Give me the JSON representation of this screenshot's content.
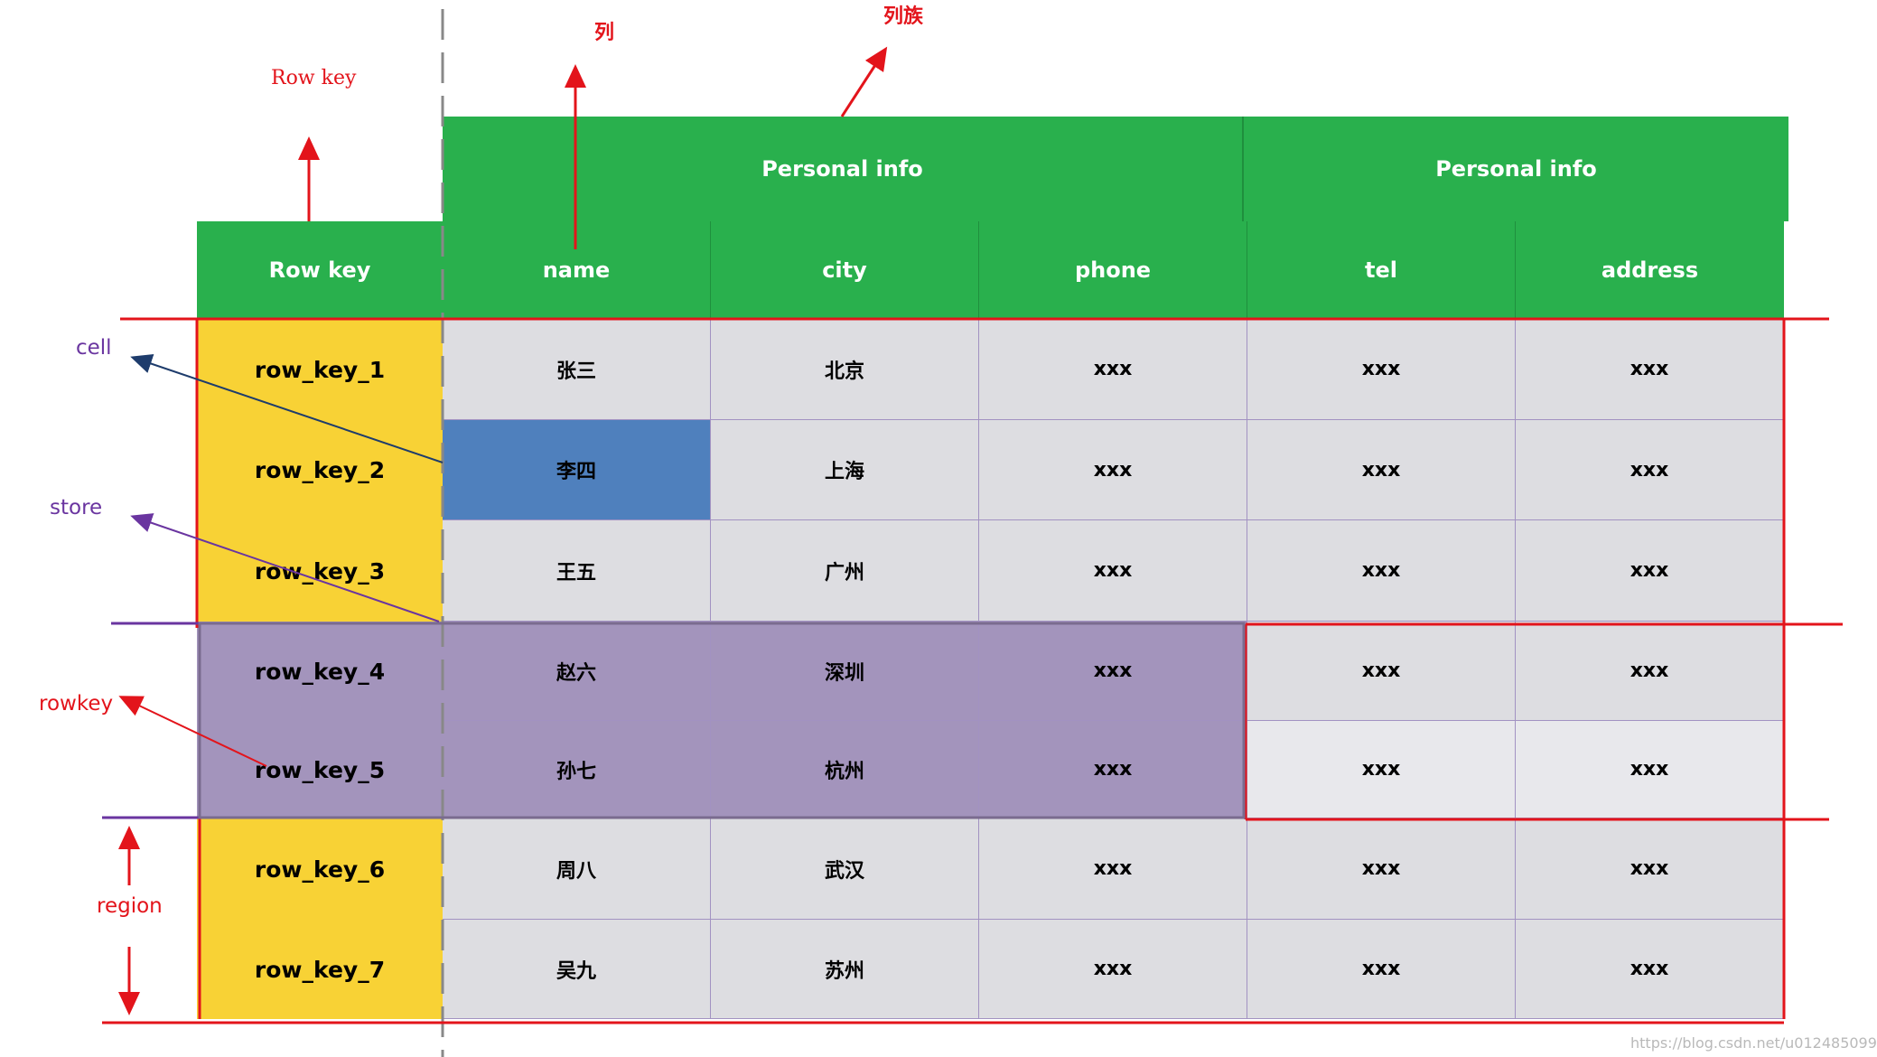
{
  "header": {
    "family_left": "Personal info",
    "family_right": "Personal info",
    "row_key_header": "Row key",
    "columns": [
      "name",
      "city",
      "phone",
      "tel",
      "address"
    ]
  },
  "rows": [
    {
      "key": "row_key_1",
      "cells": [
        "张三",
        "北京",
        "xxx",
        "xxx",
        "xxx"
      ]
    },
    {
      "key": "row_key_2",
      "cells": [
        "李四",
        "上海",
        "xxx",
        "xxx",
        "xxx"
      ]
    },
    {
      "key": "row_key_3",
      "cells": [
        "王五",
        "广州",
        "xxx",
        "xxx",
        "xxx"
      ]
    },
    {
      "key": "row_key_4",
      "cells": [
        "赵六",
        "深圳",
        "xxx",
        "xxx",
        "xxx"
      ]
    },
    {
      "key": "row_key_5",
      "cells": [
        "孙七",
        "杭州",
        "xxx",
        "xxx",
        "xxx"
      ]
    },
    {
      "key": "row_key_6",
      "cells": [
        "周八",
        "武汉",
        "xxx",
        "xxx",
        "xxx"
      ]
    },
    {
      "key": "row_key_7",
      "cells": [
        "吴九",
        "苏州",
        "xxx",
        "xxx",
        "xxx"
      ]
    }
  ],
  "annotations": {
    "row_key": "Row key",
    "column": "列",
    "column_family": "列族",
    "cell": "cell",
    "store": "store",
    "rowkey": "rowkey",
    "region": "region"
  },
  "watermark": "https://blog.csdn.net/u012485099",
  "colors": {
    "header_green": "#29b04d",
    "row_key_yellow": "#f8d235",
    "cell_gray": "#dddde1",
    "highlight_cell_blue": "#4f80bd",
    "store_purple": "#a394bc",
    "annotation_red": "#e3141b",
    "annotation_violet": "#6a35a0"
  }
}
